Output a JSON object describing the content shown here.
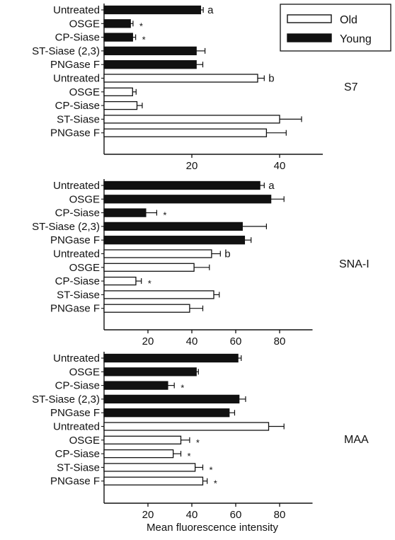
{
  "chart_data": [
    {
      "type": "bar",
      "orientation": "horizontal",
      "panel_label": "S7",
      "xlim": [
        0,
        50
      ],
      "xticks": [
        20,
        40
      ],
      "rows": [
        {
          "label": "Untreated",
          "group": "Young",
          "value": 22,
          "error": 0.6,
          "annotation": "a"
        },
        {
          "label": "OSGE",
          "group": "Young",
          "value": 6,
          "error": 0.6,
          "annotation": "*"
        },
        {
          "label": "CP-Siase",
          "group": "Young",
          "value": 6.5,
          "error": 0.7,
          "annotation": "*"
        },
        {
          "label": "ST-Siase (2,3)",
          "group": "Young",
          "value": 21,
          "error": 2,
          "annotation": ""
        },
        {
          "label": "PNGase F",
          "group": "Young",
          "value": 21,
          "error": 1.5,
          "annotation": ""
        },
        {
          "label": "Untreated",
          "group": "Old",
          "value": 35,
          "error": 1.5,
          "annotation": "b"
        },
        {
          "label": "OSGE",
          "group": "Old",
          "value": 6.5,
          "error": 0.8,
          "annotation": ""
        },
        {
          "label": "CP-Siase",
          "group": "Old",
          "value": 7.5,
          "error": 1.2,
          "annotation": ""
        },
        {
          "label": "ST-Siase",
          "group": "Old",
          "value": 40,
          "error": 5,
          "annotation": ""
        },
        {
          "label": "PNGase F",
          "group": "Old",
          "value": 37,
          "error": 4.5,
          "annotation": ""
        }
      ]
    },
    {
      "type": "bar",
      "orientation": "horizontal",
      "panel_label": "SNA-I",
      "xlim": [
        0,
        95
      ],
      "xticks": [
        20,
        40,
        60,
        80
      ],
      "rows": [
        {
          "label": "Untreated",
          "group": "Young",
          "value": 71,
          "error": 2,
          "annotation": "a"
        },
        {
          "label": "OSGE",
          "group": "Young",
          "value": 76,
          "error": 6,
          "annotation": ""
        },
        {
          "label": "CP-Siase",
          "group": "Young",
          "value": 19,
          "error": 5,
          "annotation": "*"
        },
        {
          "label": "ST-Siase (2,3)",
          "group": "Young",
          "value": 63,
          "error": 11,
          "annotation": ""
        },
        {
          "label": "PNGase F",
          "group": "Young",
          "value": 64,
          "error": 3,
          "annotation": ""
        },
        {
          "label": "Untreated",
          "group": "Old",
          "value": 49,
          "error": 4,
          "annotation": "b"
        },
        {
          "label": "OSGE",
          "group": "Old",
          "value": 41,
          "error": 7,
          "annotation": ""
        },
        {
          "label": "CP-Siase",
          "group": "Old",
          "value": 14.5,
          "error": 2.5,
          "annotation": "*"
        },
        {
          "label": "ST-Siase",
          "group": "Old",
          "value": 50,
          "error": 2.5,
          "annotation": ""
        },
        {
          "label": "PNGase F",
          "group": "Old",
          "value": 39,
          "error": 6,
          "annotation": ""
        }
      ]
    },
    {
      "type": "bar",
      "orientation": "horizontal",
      "panel_label": "MAA",
      "xlim": [
        0,
        95
      ],
      "xticks": [
        20,
        40,
        60,
        80
      ],
      "xlabel": "Mean fluorescence intensity",
      "rows": [
        {
          "label": "Untreated",
          "group": "Young",
          "value": 61,
          "error": 1.5,
          "annotation": ""
        },
        {
          "label": "OSGE",
          "group": "Young",
          "value": 42,
          "error": 1,
          "annotation": ""
        },
        {
          "label": "CP-Siase",
          "group": "Young",
          "value": 29,
          "error": 3,
          "annotation": "*"
        },
        {
          "label": "ST-Siase (2,3)",
          "group": "Young",
          "value": 61.5,
          "error": 3,
          "annotation": ""
        },
        {
          "label": "PNGase F",
          "group": "Young",
          "value": 57,
          "error": 2.5,
          "annotation": ""
        },
        {
          "label": "Untreated",
          "group": "Old",
          "value": 75,
          "error": 7,
          "annotation": ""
        },
        {
          "label": "OSGE",
          "group": "Old",
          "value": 35,
          "error": 4,
          "annotation": "*"
        },
        {
          "label": "CP-Siase",
          "group": "Old",
          "value": 31.5,
          "error": 3.5,
          "annotation": "*"
        },
        {
          "label": "ST-Siase",
          "group": "Old",
          "value": 41.5,
          "error": 3.5,
          "annotation": "*"
        },
        {
          "label": "PNGase F",
          "group": "Old",
          "value": 45,
          "error": 2,
          "annotation": "*"
        }
      ]
    }
  ],
  "legend": {
    "placement": "top-right",
    "items": [
      {
        "name": "Old",
        "fill": "#ffffff"
      },
      {
        "name": "Young",
        "fill": "#111111"
      }
    ]
  },
  "colors": {
    "young": "#111111",
    "old": "#ffffff",
    "stroke": "#111111"
  }
}
